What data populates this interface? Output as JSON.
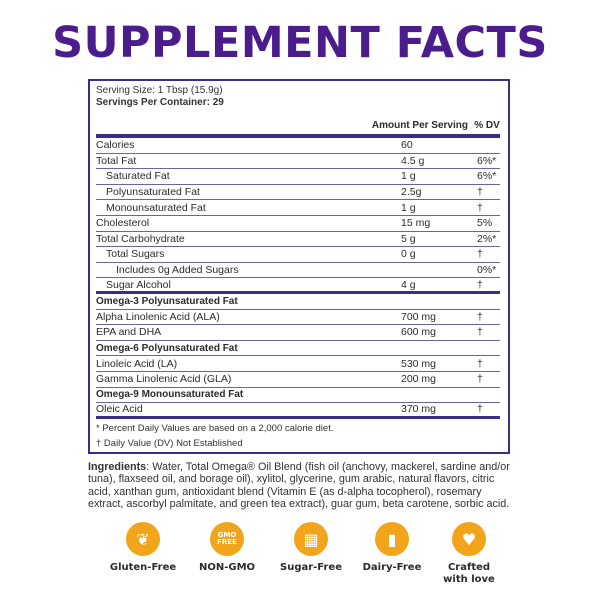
{
  "title": "SUPPLEMENT FACTS",
  "serving_size": "Serving Size: 1 Tbsp (15.9g)",
  "servings_per_container": "Servings Per Container: 29",
  "columns": {
    "amount": "Amount Per Serving",
    "dv": "% DV"
  },
  "rows": [
    {
      "name": "Calories",
      "amount": "60",
      "dv": "",
      "level": 0
    },
    {
      "name": "Total Fat",
      "amount": "4.5 g",
      "dv": "6%*",
      "level": 0
    },
    {
      "name": "Saturated Fat",
      "amount": "1 g",
      "dv": "6%*",
      "level": 1
    },
    {
      "name": "Polyunsaturated Fat",
      "amount": "2.5g",
      "dv": "†",
      "level": 1
    },
    {
      "name": "Monounsaturated Fat",
      "amount": "1 g",
      "dv": "†",
      "level": 1
    },
    {
      "name": "Cholesterol",
      "amount": "15 mg",
      "dv": "5%",
      "level": 0
    },
    {
      "name": "Total Carbohydrate",
      "amount": "5 g",
      "dv": "2%*",
      "level": 0
    },
    {
      "name": "Total Sugars",
      "amount": "0 g",
      "dv": "†",
      "level": 1
    },
    {
      "name": "Includes 0g Added Sugars",
      "amount": "",
      "dv": "0%*",
      "level": 2
    },
    {
      "name": "Sugar Alcohol",
      "amount": "4 g",
      "dv": "†",
      "level": 1,
      "thick": true
    },
    {
      "name": "Omega-3 Polyunsaturated Fat",
      "section": true
    },
    {
      "name": "Alpha Linolenic Acid (ALA)",
      "amount": "700 mg",
      "dv": "†",
      "level": 0
    },
    {
      "name": "EPA and DHA",
      "amount": "600 mg",
      "dv": "†",
      "level": 0
    },
    {
      "name": "Omega-6 Polyunsaturated Fat",
      "section": true
    },
    {
      "name": "Linoleic Acid (LA)",
      "amount": "530 mg",
      "dv": "†",
      "level": 0
    },
    {
      "name": "Gamma Linolenic Acid (GLA)",
      "amount": "200 mg",
      "dv": "†",
      "level": 0
    },
    {
      "name": "Omega-9 Monounsaturated Fat",
      "section": true
    },
    {
      "name": "Oleic Acid",
      "amount": "370 mg",
      "dv": "†",
      "level": 0,
      "thick": true
    }
  ],
  "footnotes": [
    "* Percent Daily Values are based on a 2,000 calorie diet.",
    "† Daily Value (DV) Not Established"
  ],
  "ingredients_label": "Ingredients",
  "ingredients_text": ": Water, Total Omega® Oil Blend (fish oil (anchovy, mackerel, sardine and/or tuna), flaxseed oil, and borage oil), xylitol, glycerine, gum arabic, natural flavors, citric acid, xanthan gum, antioxidant blend (Vitamin E (as d-alpha tocopherol), rosemary extract, ascorbyl palmitate, and green tea extract), guar gum, beta carotene, sorbic acid.",
  "badges": [
    {
      "label": "Gluten-Free",
      "icon": "wheat-icon",
      "glyph": "❦"
    },
    {
      "label": "NON-GMO",
      "icon": "gmo-free-icon",
      "glyph": "GMO FREE"
    },
    {
      "label": "Sugar-Free",
      "icon": "sugar-cubes-icon",
      "glyph": "▦"
    },
    {
      "label": "Dairy-Free",
      "icon": "milk-bottle-icon",
      "glyph": "▮"
    },
    {
      "label": "Crafted with love",
      "icon": "heart-icon",
      "glyph": "♥"
    }
  ],
  "colors": {
    "heading": "#4a1c8c",
    "border": "#3a2d86",
    "badge": "#f2a51a"
  }
}
